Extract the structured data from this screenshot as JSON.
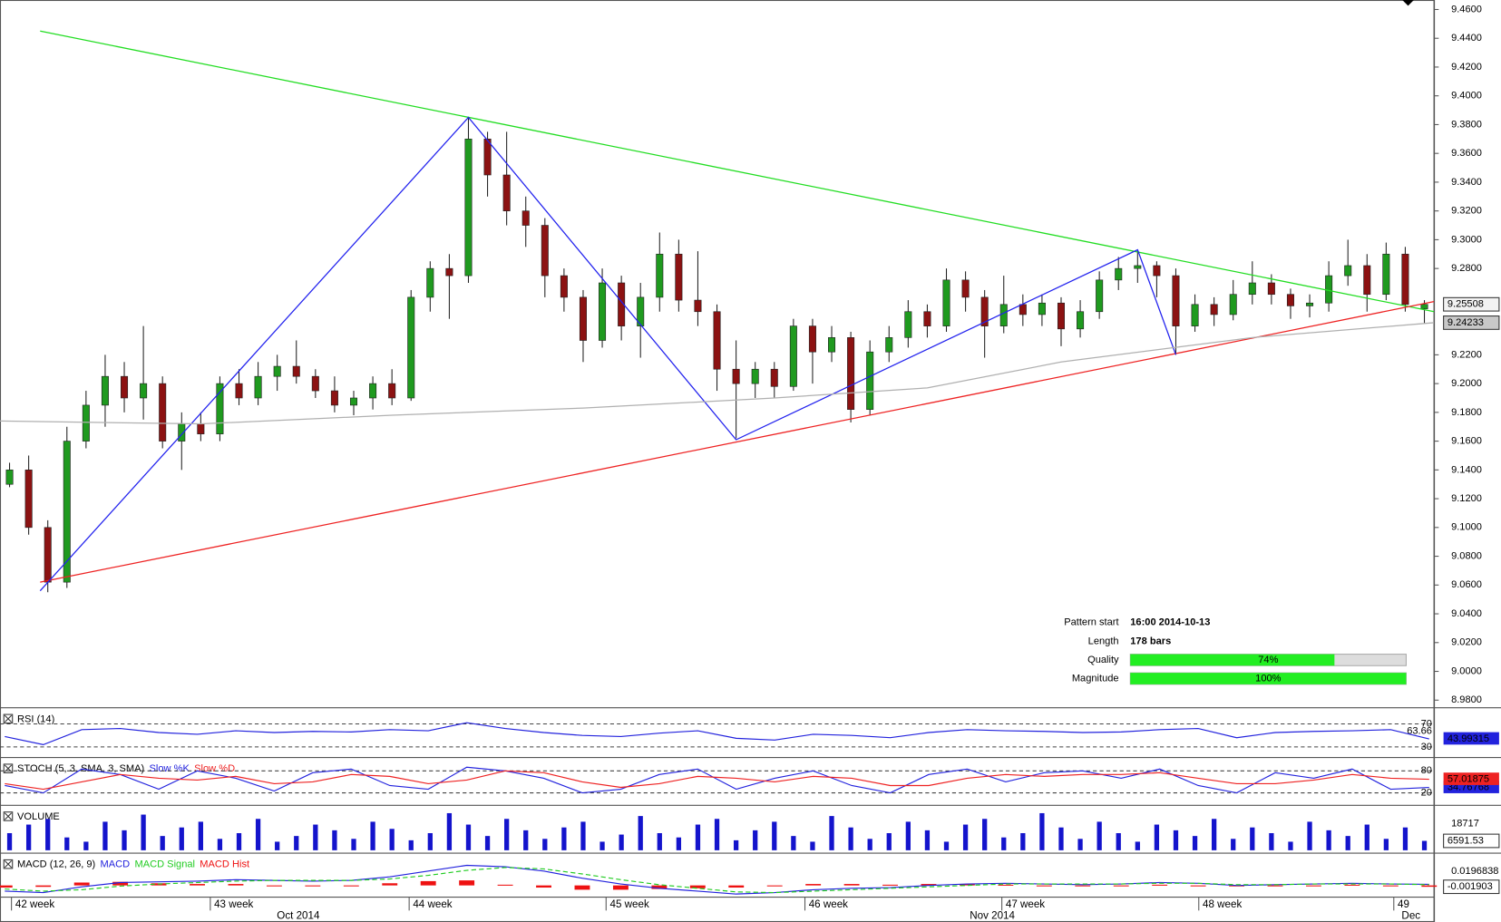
{
  "chart_data": [
    {
      "type": "candlestick",
      "up_color": "#1f9a1f",
      "down_color": "#8c1212",
      "xlim": [
        -0.5,
        74.5
      ],
      "ylim": [
        8.9747,
        9.4666
      ],
      "yticks": [
        {
          "value": 9.46,
          "label": "9.4600"
        },
        {
          "value": 9.44,
          "label": "9.4400"
        },
        {
          "value": 9.42,
          "label": "9.4200"
        },
        {
          "value": 9.4,
          "label": "9.4000"
        },
        {
          "value": 9.38,
          "label": "9.3800"
        },
        {
          "value": 9.36,
          "label": "9.3600"
        },
        {
          "value": 9.34,
          "label": "9.3400"
        },
        {
          "value": 9.32,
          "label": "9.3200"
        },
        {
          "value": 9.3,
          "label": "9.3000"
        },
        {
          "value": 9.28,
          "label": "9.2800"
        },
        {
          "value": 9.22,
          "label": "9.2200"
        },
        {
          "value": 9.2,
          "label": "9.2000"
        },
        {
          "value": 9.18,
          "label": "9.1800"
        },
        {
          "value": 9.16,
          "label": "9.1600"
        },
        {
          "value": 9.14,
          "label": "9.1400"
        },
        {
          "value": 9.12,
          "label": "9.1200"
        },
        {
          "value": 9.1,
          "label": "9.1000"
        },
        {
          "value": 9.08,
          "label": "9.0800"
        },
        {
          "value": 9.06,
          "label": "9.0600"
        },
        {
          "value": 9.04,
          "label": "9.0400"
        },
        {
          "value": 9.02,
          "label": "9.0200"
        },
        {
          "value": 9.0,
          "label": "9.0000"
        },
        {
          "value": 8.98,
          "label": "8.9800"
        }
      ],
      "xticks": [
        {
          "value": 0.1,
          "label": "42 week"
        },
        {
          "value": 10.5,
          "label": "43 week"
        },
        {
          "value": 20.9,
          "label": "44 week"
        },
        {
          "value": 31.2,
          "label": "45 week"
        },
        {
          "value": 41.6,
          "label": "46 week"
        },
        {
          "value": 51.9,
          "label": "47 week"
        },
        {
          "value": 62.2,
          "label": "48 week"
        },
        {
          "value": 72.4,
          "label": "49"
        }
      ],
      "months": [
        {
          "value": 15.1,
          "label": "Oct 2014"
        },
        {
          "value": 51.4,
          "label": "Nov 2014"
        },
        {
          "value": 73.3,
          "label": "Dec"
        }
      ],
      "ohlc": [
        [
          9.13,
          9.145,
          9.128,
          9.14
        ],
        [
          9.14,
          9.15,
          9.095,
          9.1
        ],
        [
          9.1,
          9.105,
          9.055,
          9.062
        ],
        [
          9.062,
          9.17,
          9.058,
          9.16
        ],
        [
          9.16,
          9.195,
          9.155,
          9.185
        ],
        [
          9.185,
          9.22,
          9.17,
          9.205
        ],
        [
          9.205,
          9.215,
          9.18,
          9.19
        ],
        [
          9.19,
          9.24,
          9.175,
          9.2
        ],
        [
          9.2,
          9.205,
          9.155,
          9.16
        ],
        [
          9.16,
          9.18,
          9.14,
          9.172
        ],
        [
          9.172,
          9.18,
          9.16,
          9.165
        ],
        [
          9.165,
          9.205,
          9.16,
          9.2
        ],
        [
          9.2,
          9.21,
          9.185,
          9.19
        ],
        [
          9.19,
          9.215,
          9.185,
          9.205
        ],
        [
          9.205,
          9.22,
          9.195,
          9.212
        ],
        [
          9.212,
          9.23,
          9.2,
          9.205
        ],
        [
          9.205,
          9.21,
          9.19,
          9.195
        ],
        [
          9.195,
          9.205,
          9.18,
          9.185
        ],
        [
          9.185,
          9.195,
          9.178,
          9.19
        ],
        [
          9.19,
          9.205,
          9.182,
          9.2
        ],
        [
          9.2,
          9.21,
          9.185,
          9.19
        ],
        [
          9.19,
          9.265,
          9.188,
          9.26
        ],
        [
          9.26,
          9.285,
          9.25,
          9.28
        ],
        [
          9.28,
          9.29,
          9.245,
          9.275
        ],
        [
          9.275,
          9.385,
          9.27,
          9.37
        ],
        [
          9.37,
          9.375,
          9.33,
          9.345
        ],
        [
          9.345,
          9.375,
          9.31,
          9.32
        ],
        [
          9.32,
          9.33,
          9.295,
          9.31
        ],
        [
          9.31,
          9.315,
          9.26,
          9.275
        ],
        [
          9.275,
          9.28,
          9.25,
          9.26
        ],
        [
          9.26,
          9.265,
          9.215,
          9.23
        ],
        [
          9.23,
          9.28,
          9.225,
          9.27
        ],
        [
          9.27,
          9.275,
          9.23,
          9.24
        ],
        [
          9.24,
          9.27,
          9.218,
          9.26
        ],
        [
          9.26,
          9.305,
          9.25,
          9.29
        ],
        [
          9.29,
          9.3,
          9.25,
          9.258
        ],
        [
          9.258,
          9.292,
          9.24,
          9.25
        ],
        [
          9.25,
          9.255,
          9.195,
          9.21
        ],
        [
          9.21,
          9.23,
          9.162,
          9.2
        ],
        [
          9.2,
          9.215,
          9.19,
          9.21
        ],
        [
          9.21,
          9.215,
          9.19,
          9.198
        ],
        [
          9.198,
          9.245,
          9.195,
          9.24
        ],
        [
          9.24,
          9.245,
          9.2,
          9.222
        ],
        [
          9.222,
          9.24,
          9.215,
          9.232
        ],
        [
          9.232,
          9.236,
          9.173,
          9.182
        ],
        [
          9.182,
          9.23,
          9.178,
          9.222
        ],
        [
          9.222,
          9.24,
          9.215,
          9.232
        ],
        [
          9.232,
          9.258,
          9.225,
          9.25
        ],
        [
          9.25,
          9.255,
          9.232,
          9.24
        ],
        [
          9.24,
          9.28,
          9.236,
          9.272
        ],
        [
          9.272,
          9.278,
          9.25,
          9.26
        ],
        [
          9.26,
          9.265,
          9.218,
          9.24
        ],
        [
          9.24,
          9.275,
          9.235,
          9.255
        ],
        [
          9.255,
          9.262,
          9.24,
          9.248
        ],
        [
          9.248,
          9.262,
          9.24,
          9.256
        ],
        [
          9.256,
          9.26,
          9.226,
          9.238
        ],
        [
          9.238,
          9.258,
          9.232,
          9.25
        ],
        [
          9.25,
          9.278,
          9.245,
          9.272
        ],
        [
          9.272,
          9.288,
          9.265,
          9.28
        ],
        [
          9.28,
          9.293,
          9.27,
          9.282
        ],
        [
          9.282,
          9.285,
          9.26,
          9.275
        ],
        [
          9.275,
          9.28,
          9.22,
          9.24
        ],
        [
          9.24,
          9.262,
          9.236,
          9.255
        ],
        [
          9.255,
          9.26,
          9.24,
          9.248
        ],
        [
          9.248,
          9.272,
          9.244,
          9.262
        ],
        [
          9.262,
          9.285,
          9.255,
          9.27
        ],
        [
          9.27,
          9.276,
          9.255,
          9.262
        ],
        [
          9.262,
          9.266,
          9.245,
          9.254
        ],
        [
          9.254,
          9.262,
          9.246,
          9.256
        ],
        [
          9.256,
          9.285,
          9.25,
          9.275
        ],
        [
          9.275,
          9.3,
          9.268,
          9.282
        ],
        [
          9.282,
          9.29,
          9.25,
          9.262
        ],
        [
          9.262,
          9.298,
          9.258,
          9.29
        ],
        [
          9.29,
          9.295,
          9.25,
          9.255
        ],
        [
          9.252,
          9.258,
          9.242,
          9.25508
        ]
      ],
      "lines": [
        {
          "color": "#22dd22",
          "points": [
            [
              1.6,
              9.445
            ],
            [
              74.5,
              9.25
            ]
          ]
        },
        {
          "color": "#ee2222",
          "points": [
            [
              1.6,
              9.062
            ],
            [
              74.5,
              9.257
            ]
          ]
        },
        {
          "color": "#2222ee",
          "points": [
            [
              1.6,
              9.056
            ],
            [
              24,
              9.385
            ],
            [
              38,
              9.161
            ],
            [
              59,
              9.293
            ],
            [
              61,
              9.22
            ]
          ]
        },
        {
          "color": "#b0b0b0",
          "points": [
            [
              -0.5,
              9.174
            ],
            [
              10,
              9.172
            ],
            [
              20,
              9.178
            ],
            [
              30,
              9.183
            ],
            [
              40,
              9.19
            ],
            [
              48,
              9.197
            ],
            [
              55,
              9.215
            ],
            [
              65,
              9.232
            ],
            [
              74.5,
              9.24233
            ]
          ]
        }
      ],
      "info": {
        "pattern_start_label": "Pattern start",
        "pattern_start": "16:00 2014-10-13",
        "length_label": "Length",
        "length": "178 bars",
        "quality_label": "Quality",
        "quality": 74,
        "quality_text": "74%",
        "magnitude_label": "Magnitude",
        "magnitude": 100,
        "magnitude_text": "100%"
      }
    },
    {
      "type": "line",
      "title": "RSI (14)",
      "ylim": [
        15,
        93
      ],
      "levels": [
        70,
        30
      ],
      "marker": 63.66,
      "series": [
        {
          "color": "#2222dd",
          "values": [
            48,
            34,
            60,
            62,
            55,
            52,
            58,
            55,
            57,
            56,
            60,
            58,
            72,
            62,
            55,
            50,
            48,
            54,
            58,
            45,
            42,
            52,
            50,
            46,
            55,
            60,
            58,
            57,
            55,
            56,
            60,
            62,
            46,
            55,
            57,
            58,
            60,
            43.99315
          ]
        }
      ]
    },
    {
      "type": "line",
      "title": "STOCH (5, 3, SMA, 3, SMA)",
      "ylim": [
        -3.5,
        108.7
      ],
      "levels": [
        80,
        20
      ],
      "series": [
        {
          "name": "Slow %K",
          "color": "#2222dd",
          "values": [
            40,
            20,
            85,
            70,
            30,
            80,
            60,
            25,
            75,
            85,
            40,
            30,
            90,
            80,
            60,
            20,
            30,
            70,
            85,
            30,
            60,
            80,
            40,
            20,
            70,
            85,
            50,
            75,
            80,
            60,
            85,
            40,
            20,
            75,
            60,
            85,
            30,
            34.76768
          ]
        },
        {
          "name": "Slow %D",
          "color": "#ee2222",
          "values": [
            45,
            30,
            50,
            70,
            60,
            55,
            65,
            45,
            50,
            70,
            65,
            45,
            55,
            80,
            75,
            50,
            35,
            45,
            65,
            60,
            50,
            65,
            60,
            40,
            40,
            60,
            70,
            65,
            70,
            70,
            75,
            60,
            45,
            45,
            55,
            70,
            60,
            57.01875
          ]
        }
      ]
    },
    {
      "type": "bar",
      "title": "VOLUME",
      "color": "#1414cc",
      "ylim": [
        0,
        29500
      ],
      "marker": 18717,
      "values": [
        12000,
        18000,
        22000,
        9000,
        6000,
        20000,
        14000,
        25000,
        10000,
        16000,
        20000,
        8000,
        12000,
        22000,
        6000,
        10000,
        18000,
        14000,
        8000,
        20000,
        15000,
        7000,
        12000,
        26000,
        18000,
        10000,
        22000,
        14000,
        8000,
        16000,
        20000,
        6000,
        11000,
        24000,
        12000,
        9000,
        18000,
        22000,
        7000,
        14000,
        20000,
        10000,
        6000,
        24000,
        16000,
        8000,
        12000,
        20000,
        14000,
        6000,
        18000,
        22000,
        9000,
        12000,
        26000,
        16000,
        8000,
        20000,
        12000,
        6000,
        18000,
        14000,
        10000,
        22000,
        8000,
        16000,
        12000,
        6000,
        20000,
        14000,
        10000,
        18000,
        8000,
        16000,
        6591.53
      ]
    },
    {
      "type": "macd",
      "title": "MACD (12, 26, 9)",
      "ylim": [
        -0.015,
        0.041
      ],
      "marker": 0.0196838,
      "series": [
        {
          "name": "MACD",
          "color": "#2222dd",
          "values": [
            -0.008,
            -0.01,
            -0.002,
            0.004,
            0.005,
            0.006,
            0.008,
            0.007,
            0.006,
            0.007,
            0.012,
            0.02,
            0.028,
            0.026,
            0.02,
            0.01,
            0.002,
            -0.004,
            -0.008,
            -0.012,
            -0.01,
            -0.006,
            -0.004,
            -0.003,
            0,
            0.002,
            0.003,
            0.002,
            0.001,
            0.002,
            0.004,
            0.003,
            0,
            0.001,
            0.002,
            0.003,
            0.002,
            0.0015
          ]
        },
        {
          "name": "MACD Signal",
          "color": "#22cc22",
          "values": [
            -0.005,
            -0.008,
            -0.006,
            -0.001,
            0.002,
            0.004,
            0.006,
            0.007,
            0.007,
            0.007,
            0.009,
            0.014,
            0.021,
            0.025,
            0.023,
            0.016,
            0.008,
            0.001,
            -0.004,
            -0.009,
            -0.01,
            -0.008,
            -0.006,
            -0.004,
            -0.002,
            0,
            0.002,
            0.002,
            0.002,
            0.002,
            0.003,
            0.003,
            0.001,
            0.001,
            0.002,
            0.002,
            0.002,
            0.001
          ]
        },
        {
          "name": "MACD Hist",
          "color": "#ee1111",
          "values": [
            -0.003,
            -0.002,
            0.004,
            0.005,
            0.003,
            0.002,
            0.002,
            0,
            -0.001,
            0,
            0.003,
            0.006,
            0.007,
            0.001,
            -0.003,
            -0.006,
            -0.006,
            -0.005,
            -0.004,
            -0.003,
            0,
            0.002,
            0.002,
            0.001,
            0.002,
            0.002,
            0.001,
            0,
            -0.001,
            0,
            0.001,
            0,
            -0.001,
            0,
            0,
            0.001,
            0,
            -0.001903
          ]
        }
      ]
    }
  ]
}
